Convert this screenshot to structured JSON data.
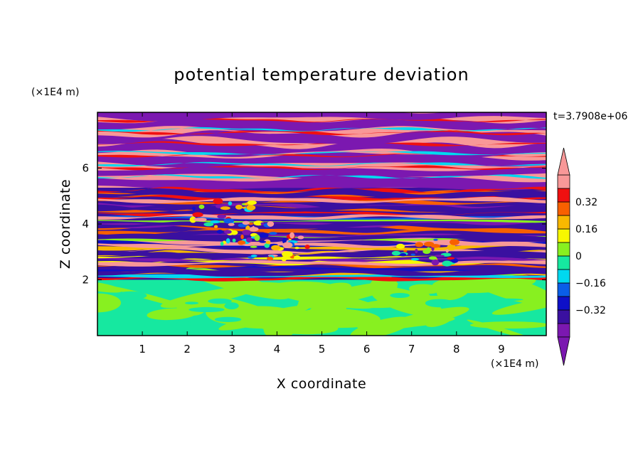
{
  "chart_data": {
    "type": "heatmap",
    "title": "potential temperature deviation",
    "xlabel": "X coordinate",
    "ylabel": "Z coordinate",
    "x_unit": "(×1E4 m)",
    "y_unit": "(×1E4 m)",
    "time_label": "t=3.7908e+06",
    "xlim": [
      0,
      10
    ],
    "ylim": [
      0,
      8
    ],
    "x_ticks": [
      "1",
      "2",
      "3",
      "4",
      "5",
      "6",
      "7",
      "8",
      "9"
    ],
    "y_ticks": [
      "2",
      "4",
      "6"
    ],
    "colorbar": {
      "levels": [
        -0.48,
        -0.4,
        -0.32,
        -0.24,
        -0.16,
        -0.08,
        0,
        0.08,
        0.16,
        0.24,
        0.32,
        0.4,
        0.48
      ],
      "tick_labels": [
        "0.32",
        "0.16",
        "0",
        "−0.16",
        "−0.32"
      ],
      "colors": [
        "#7b18b0",
        "#3a10a0",
        "#0e10c8",
        "#0a5ee8",
        "#00d8f0",
        "#16e8a0",
        "#88f020",
        "#f8f800",
        "#f8b800",
        "#f86000",
        "#f01010",
        "#f89898"
      ],
      "extend": "both"
    },
    "bands": [
      {
        "z_min": 0.0,
        "z_max": 2.0,
        "pattern": "mixed green/lime (values near 0)"
      },
      {
        "z_min": 2.0,
        "z_max": 3.8,
        "pattern": "alternating thin multicolor layers"
      },
      {
        "z_min": 3.8,
        "z_max": 5.3,
        "pattern": "blue/purple/pink layers with turbulent mixing"
      },
      {
        "z_min": 5.3,
        "z_max": 8.0,
        "pattern": "alternating purple and pink layers"
      }
    ]
  }
}
